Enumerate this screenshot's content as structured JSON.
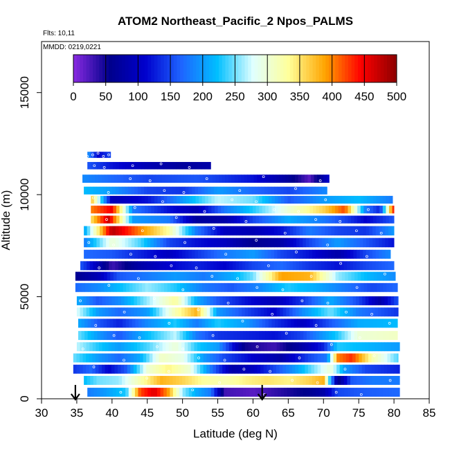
{
  "chart_data": {
    "type": "heatmap",
    "title": "ATOM2 Northeast_Pacific_2 Npos_PALMS",
    "meta_lines": [
      "Flts: 10,11",
      "MMDD: 0219,0221"
    ],
    "xlabel": "Latitude (deg N)",
    "ylabel": "Altitude (m)",
    "xlim": [
      30,
      85
    ],
    "ylim": [
      0,
      17500
    ],
    "x_ticks": [
      "30",
      "35",
      "40",
      "45",
      "50",
      "55",
      "60",
      "65",
      "70",
      "75",
      "80",
      "85"
    ],
    "y_ticks": [
      "0",
      "5000",
      "10000",
      "15000"
    ],
    "y_tick_values": [
      0,
      5000,
      10000,
      15000
    ],
    "colorbar": {
      "min": 0,
      "max": 500,
      "ticks": [
        "0",
        "50",
        "100",
        "150",
        "200",
        "250",
        "300",
        "350",
        "400",
        "450",
        "500"
      ],
      "colors": [
        "#8a2be2",
        "#00008b",
        "#0000cd",
        "#1e64ff",
        "#00bfff",
        "#e0ffff",
        "#ffff99",
        "#ffa500",
        "#ff0000",
        "#8b0000"
      ]
    },
    "markers": [
      {
        "lat": 34.8,
        "label": "down-arrow-1"
      },
      {
        "lat": 61.3,
        "label": "down-arrow-2"
      }
    ],
    "grid": false,
    "bands": [
      {
        "alt": 11950,
        "h": 300,
        "x0": 36.5,
        "x1": 39.8,
        "anchors": [
          [
            36.5,
            200
          ],
          [
            38,
            110
          ],
          [
            39.8,
            150
          ]
        ]
      },
      {
        "alt": 11420,
        "h": 360,
        "x0": 36.5,
        "x1": 54.0,
        "anchors": [
          [
            36.5,
            160
          ],
          [
            40,
            120
          ],
          [
            45,
            90
          ],
          [
            50,
            70
          ],
          [
            54,
            80
          ]
        ]
      },
      {
        "alt": 10780,
        "h": 400,
        "x0": 35.8,
        "x1": 70.8,
        "anchors": [
          [
            35.8,
            190
          ],
          [
            40,
            170
          ],
          [
            45,
            150
          ],
          [
            52,
            160
          ],
          [
            60,
            120
          ],
          [
            65,
            70
          ],
          [
            68,
            20
          ],
          [
            70.8,
            110
          ]
        ]
      },
      {
        "alt": 10200,
        "h": 380,
        "x0": 36.0,
        "x1": 70.5,
        "anchors": [
          [
            36,
            220
          ],
          [
            40,
            200
          ],
          [
            45,
            150
          ],
          [
            50,
            140
          ],
          [
            55,
            200
          ],
          [
            60,
            170
          ],
          [
            65,
            150
          ],
          [
            70.5,
            190
          ]
        ]
      },
      {
        "alt": 9750,
        "h": 380,
        "x0": 37.0,
        "x1": 79.8,
        "anchors": [
          [
            37,
            380
          ],
          [
            40,
            90
          ],
          [
            45,
            120
          ],
          [
            50,
            200
          ],
          [
            55,
            270
          ],
          [
            60,
            250
          ],
          [
            65,
            160
          ],
          [
            70,
            200
          ],
          [
            75,
            220
          ],
          [
            79.8,
            180
          ]
        ]
      },
      {
        "alt": 9270,
        "h": 380,
        "x0": 37.0,
        "x1": 80.0,
        "anchors": [
          [
            37,
            400
          ],
          [
            40,
            450
          ],
          [
            43,
            180
          ],
          [
            48,
            120
          ],
          [
            52,
            90
          ],
          [
            56,
            180
          ],
          [
            60,
            230
          ],
          [
            65,
            300
          ],
          [
            70,
            360
          ],
          [
            73,
            420
          ],
          [
            76,
            180
          ],
          [
            78,
            130
          ],
          [
            80,
            450
          ]
        ]
      },
      {
        "alt": 8780,
        "h": 380,
        "x0": 37.0,
        "x1": 80.0,
        "anchors": [
          [
            37,
            350
          ],
          [
            39.5,
            470
          ],
          [
            43,
            200
          ],
          [
            48,
            180
          ],
          [
            52,
            70
          ],
          [
            56,
            80
          ],
          [
            60,
            150
          ],
          [
            65,
            210
          ],
          [
            70,
            180
          ],
          [
            73,
            150
          ],
          [
            76,
            110
          ],
          [
            80,
            160
          ]
        ]
      },
      {
        "alt": 8230,
        "h": 460,
        "x0": 36.0,
        "x1": 80.0,
        "anchors": [
          [
            36,
            200
          ],
          [
            40,
            480
          ],
          [
            44,
            400
          ],
          [
            48,
            330
          ],
          [
            52,
            180
          ],
          [
            56,
            100
          ],
          [
            60,
            90
          ],
          [
            64,
            120
          ],
          [
            68,
            180
          ],
          [
            72,
            150
          ],
          [
            76,
            140
          ],
          [
            80,
            200
          ]
        ]
      },
      {
        "alt": 7650,
        "h": 460,
        "x0": 36.0,
        "x1": 80.0,
        "anchors": [
          [
            36,
            180
          ],
          [
            40,
            300
          ],
          [
            44,
            240
          ],
          [
            48,
            150
          ],
          [
            52,
            120
          ],
          [
            56,
            100
          ],
          [
            60,
            60
          ],
          [
            64,
            80
          ],
          [
            68,
            150
          ],
          [
            72,
            200
          ],
          [
            76,
            160
          ],
          [
            80,
            120
          ]
        ]
      },
      {
        "alt": 7080,
        "h": 440,
        "x0": 36.0,
        "x1": 79.5,
        "anchors": [
          [
            36,
            170
          ],
          [
            40,
            160
          ],
          [
            44,
            130
          ],
          [
            48,
            100
          ],
          [
            52,
            140
          ],
          [
            56,
            180
          ],
          [
            60,
            200
          ],
          [
            64,
            150
          ],
          [
            68,
            120
          ],
          [
            72,
            80
          ],
          [
            76,
            150
          ],
          [
            79.5,
            190
          ]
        ]
      },
      {
        "alt": 6520,
        "h": 440,
        "x0": 35.5,
        "x1": 80.0,
        "anchors": [
          [
            35.5,
            160
          ],
          [
            38,
            90
          ],
          [
            40,
            30
          ],
          [
            44,
            80
          ],
          [
            48,
            110
          ],
          [
            52,
            130
          ],
          [
            56,
            110
          ],
          [
            60,
            150
          ],
          [
            64,
            170
          ],
          [
            68,
            140
          ],
          [
            72,
            120
          ],
          [
            76,
            150
          ],
          [
            80,
            170
          ]
        ]
      },
      {
        "alt": 6000,
        "h": 440,
        "x0": 34.8,
        "x1": 80.2,
        "anchors": [
          [
            34.8,
            60
          ],
          [
            38,
            90
          ],
          [
            41,
            160
          ],
          [
            45,
            180
          ],
          [
            49,
            200
          ],
          [
            53,
            180
          ],
          [
            57,
            210
          ],
          [
            60,
            250
          ],
          [
            64,
            390
          ],
          [
            68,
            380
          ],
          [
            72,
            260
          ],
          [
            76,
            220
          ],
          [
            80.2,
            190
          ]
        ]
      },
      {
        "alt": 5450,
        "h": 440,
        "x0": 34.8,
        "x1": 80.5,
        "anchors": [
          [
            34.8,
            170
          ],
          [
            38,
            190
          ],
          [
            41,
            220
          ],
          [
            45,
            260
          ],
          [
            49,
            230
          ],
          [
            53,
            180
          ],
          [
            57,
            160
          ],
          [
            61,
            190
          ],
          [
            65,
            230
          ],
          [
            69,
            210
          ],
          [
            73,
            180
          ],
          [
            77,
            150
          ],
          [
            80.5,
            170
          ]
        ]
      },
      {
        "alt": 4800,
        "h": 440,
        "x0": 35.0,
        "x1": 80.6,
        "anchors": [
          [
            35,
            210
          ],
          [
            38,
            160
          ],
          [
            41,
            190
          ],
          [
            45,
            260
          ],
          [
            49,
            330
          ],
          [
            52,
            210
          ],
          [
            55,
            160
          ],
          [
            59,
            120
          ],
          [
            63,
            90
          ],
          [
            67,
            140
          ],
          [
            71,
            210
          ],
          [
            75,
            150
          ],
          [
            78,
            80
          ],
          [
            80.6,
            160
          ]
        ]
      },
      {
        "alt": 4250,
        "h": 440,
        "x0": 35.0,
        "x1": 80.6,
        "anchors": [
          [
            35,
            280
          ],
          [
            38,
            200
          ],
          [
            41,
            170
          ],
          [
            45,
            200
          ],
          [
            49,
            320
          ],
          [
            52,
            380
          ],
          [
            55,
            200
          ],
          [
            59,
            150
          ],
          [
            63,
            110
          ],
          [
            67,
            190
          ],
          [
            71,
            250
          ],
          [
            75,
            180
          ],
          [
            80.6,
            140
          ]
        ]
      },
      {
        "alt": 3700,
        "h": 440,
        "x0": 35.2,
        "x1": 80.5,
        "anchors": [
          [
            35.2,
            210
          ],
          [
            38,
            160
          ],
          [
            41,
            130
          ],
          [
            45,
            190
          ],
          [
            49,
            230
          ],
          [
            52,
            180
          ],
          [
            55,
            230
          ],
          [
            59,
            200
          ],
          [
            63,
            140
          ],
          [
            67,
            100
          ],
          [
            71,
            160
          ],
          [
            75,
            210
          ],
          [
            80.5,
            220
          ]
        ]
      },
      {
        "alt": 3100,
        "h": 440,
        "x0": 35.2,
        "x1": 80.5,
        "anchors": [
          [
            35.2,
            250
          ],
          [
            38,
            200
          ],
          [
            41,
            160
          ],
          [
            45,
            220
          ],
          [
            49,
            270
          ],
          [
            52,
            180
          ],
          [
            55,
            140
          ],
          [
            59,
            130
          ],
          [
            63,
            120
          ],
          [
            67,
            150
          ],
          [
            70,
            200
          ],
          [
            72,
            230
          ],
          [
            75,
            300
          ],
          [
            80.5,
            310
          ]
        ]
      },
      {
        "alt": 2550,
        "h": 440,
        "x0": 35.0,
        "x1": 80.8,
        "anchors": [
          [
            35,
            270
          ],
          [
            38,
            230
          ],
          [
            41,
            200
          ],
          [
            45,
            240
          ],
          [
            49,
            300
          ],
          [
            52,
            230
          ],
          [
            55,
            200
          ],
          [
            59,
            50
          ],
          [
            63,
            30
          ],
          [
            67,
            80
          ],
          [
            70,
            130
          ],
          [
            72,
            230
          ],
          [
            75,
            220
          ],
          [
            80.8,
            200
          ]
        ]
      },
      {
        "alt": 2000,
        "h": 440,
        "x0": 34.5,
        "x1": 80.6,
        "anchors": [
          [
            34.5,
            250
          ],
          [
            38,
            200
          ],
          [
            41,
            170
          ],
          [
            44,
            210
          ],
          [
            47,
            310
          ],
          [
            50,
            290
          ],
          [
            53,
            200
          ],
          [
            56,
            150
          ],
          [
            60,
            110
          ],
          [
            64,
            80
          ],
          [
            68,
            150
          ],
          [
            70.5,
            180
          ],
          [
            72,
            400
          ],
          [
            74,
            430
          ],
          [
            77,
            320
          ],
          [
            80.6,
            240
          ]
        ]
      },
      {
        "alt": 1450,
        "h": 440,
        "x0": 34.5,
        "x1": 80.8,
        "anchors": [
          [
            34.5,
            140
          ],
          [
            37,
            170
          ],
          [
            39.5,
            110
          ],
          [
            42,
            160
          ],
          [
            45,
            300
          ],
          [
            48,
            340
          ],
          [
            51,
            300
          ],
          [
            54,
            180
          ],
          [
            57,
            80
          ],
          [
            60,
            100
          ],
          [
            63,
            150
          ],
          [
            66,
            200
          ],
          [
            69,
            260
          ],
          [
            71,
            300
          ],
          [
            73,
            200
          ],
          [
            76,
            150
          ],
          [
            80.8,
            130
          ]
        ]
      },
      {
        "alt": 900,
        "h": 440,
        "x0": 36.0,
        "x1": 80.8,
        "anchors": [
          [
            36,
            220
          ],
          [
            38,
            250
          ],
          [
            41,
            260
          ],
          [
            44,
            320
          ],
          [
            47,
            380
          ],
          [
            50,
            360
          ],
          [
            53,
            330
          ],
          [
            56,
            320
          ],
          [
            59,
            340
          ],
          [
            62,
            350
          ],
          [
            65,
            340
          ],
          [
            68,
            360
          ],
          [
            70,
            380
          ],
          [
            72,
            50
          ],
          [
            74,
            160
          ],
          [
            77,
            180
          ],
          [
            80.8,
            180
          ]
        ]
      },
      {
        "alt": 320,
        "h": 440,
        "x0": 36.5,
        "x1": 80.8,
        "anchors": [
          [
            36.5,
            180
          ],
          [
            39,
            200
          ],
          [
            42,
            230
          ],
          [
            44,
            420
          ],
          [
            46,
            460
          ],
          [
            48,
            390
          ],
          [
            50,
            260
          ],
          [
            52,
            210
          ],
          [
            54,
            180
          ],
          [
            56,
            30
          ],
          [
            60,
            20
          ],
          [
            64,
            40
          ],
          [
            68,
            60
          ],
          [
            70,
            80
          ],
          [
            72,
            150
          ],
          [
            75,
            160
          ],
          [
            80.8,
            170
          ]
        ]
      }
    ]
  }
}
